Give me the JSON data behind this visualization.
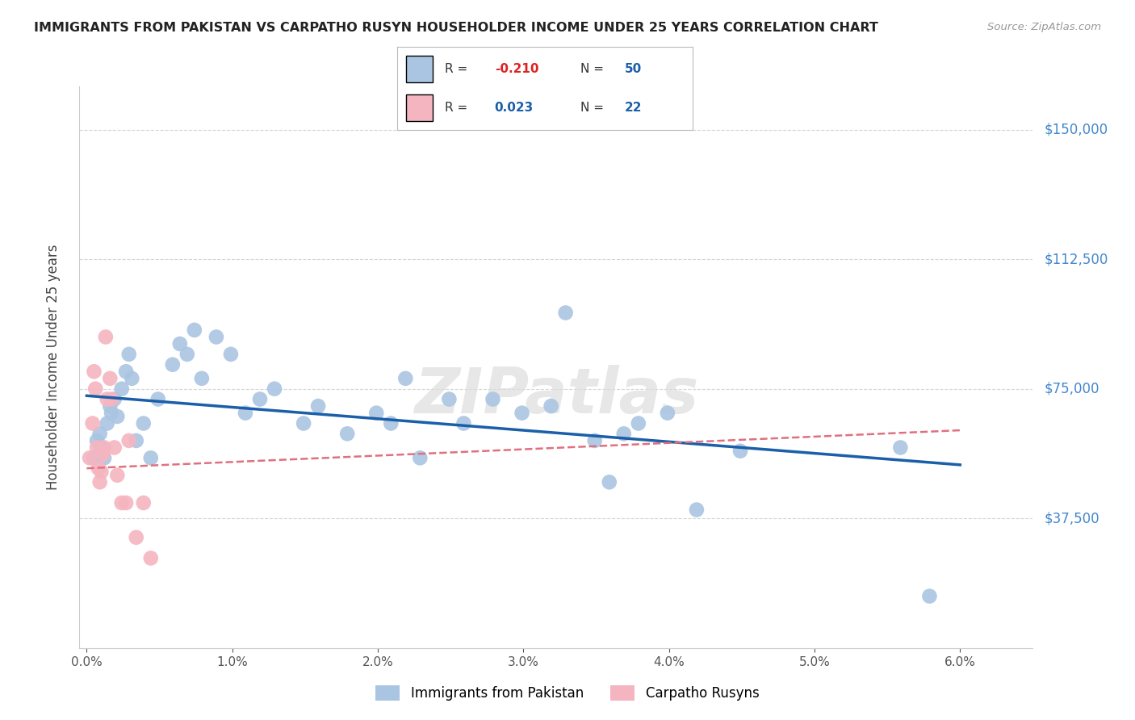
{
  "title": "IMMIGRANTS FROM PAKISTAN VS CARPATHO RUSYN HOUSEHOLDER INCOME UNDER 25 YEARS CORRELATION CHART",
  "source": "Source: ZipAtlas.com",
  "ylabel": "Householder Income Under 25 years",
  "ytick_labels": [
    "$37,500",
    "$75,000",
    "$112,500",
    "$150,000"
  ],
  "ytick_vals": [
    37500,
    75000,
    112500,
    150000
  ],
  "ylim": [
    0,
    162500
  ],
  "xlim": [
    -0.05,
    6.5
  ],
  "watermark": "ZIPatlas",
  "legend_blue_r": "-0.210",
  "legend_blue_n": "50",
  "legend_pink_r": "0.023",
  "legend_pink_n": "22",
  "blue_scatter": [
    [
      0.05,
      55000
    ],
    [
      0.07,
      60000
    ],
    [
      0.09,
      62000
    ],
    [
      0.1,
      58000
    ],
    [
      0.12,
      55000
    ],
    [
      0.14,
      65000
    ],
    [
      0.16,
      70000
    ],
    [
      0.17,
      68000
    ],
    [
      0.19,
      72000
    ],
    [
      0.21,
      67000
    ],
    [
      0.24,
      75000
    ],
    [
      0.27,
      80000
    ],
    [
      0.29,
      85000
    ],
    [
      0.31,
      78000
    ],
    [
      0.34,
      60000
    ],
    [
      0.39,
      65000
    ],
    [
      0.44,
      55000
    ],
    [
      0.49,
      72000
    ],
    [
      0.59,
      82000
    ],
    [
      0.64,
      88000
    ],
    [
      0.69,
      85000
    ],
    [
      0.74,
      92000
    ],
    [
      0.79,
      78000
    ],
    [
      0.89,
      90000
    ],
    [
      0.99,
      85000
    ],
    [
      1.09,
      68000
    ],
    [
      1.19,
      72000
    ],
    [
      1.29,
      75000
    ],
    [
      1.49,
      65000
    ],
    [
      1.59,
      70000
    ],
    [
      1.79,
      62000
    ],
    [
      1.99,
      68000
    ],
    [
      2.09,
      65000
    ],
    [
      2.19,
      78000
    ],
    [
      2.29,
      55000
    ],
    [
      2.49,
      72000
    ],
    [
      2.59,
      65000
    ],
    [
      2.79,
      72000
    ],
    [
      2.99,
      68000
    ],
    [
      3.19,
      70000
    ],
    [
      3.29,
      97000
    ],
    [
      3.49,
      60000
    ],
    [
      3.59,
      48000
    ],
    [
      3.69,
      62000
    ],
    [
      3.79,
      65000
    ],
    [
      3.99,
      68000
    ],
    [
      4.19,
      40000
    ],
    [
      4.49,
      57000
    ],
    [
      5.59,
      58000
    ],
    [
      5.79,
      15000
    ]
  ],
  "pink_scatter": [
    [
      0.02,
      55000
    ],
    [
      0.04,
      65000
    ],
    [
      0.05,
      80000
    ],
    [
      0.06,
      75000
    ],
    [
      0.07,
      58000
    ],
    [
      0.08,
      52000
    ],
    [
      0.09,
      48000
    ],
    [
      0.1,
      51000
    ],
    [
      0.11,
      56000
    ],
    [
      0.12,
      58000
    ],
    [
      0.13,
      90000
    ],
    [
      0.14,
      72000
    ],
    [
      0.16,
      78000
    ],
    [
      0.17,
      72000
    ],
    [
      0.19,
      58000
    ],
    [
      0.21,
      50000
    ],
    [
      0.24,
      42000
    ],
    [
      0.27,
      42000
    ],
    [
      0.29,
      60000
    ],
    [
      0.34,
      32000
    ],
    [
      0.39,
      42000
    ],
    [
      0.44,
      26000
    ]
  ],
  "blue_line_x": [
    0.0,
    6.0
  ],
  "blue_line_y": [
    73000,
    53000
  ],
  "pink_line_x": [
    0.0,
    6.0
  ],
  "pink_line_y": [
    52000,
    63000
  ],
  "blue_color": "#aac5e2",
  "blue_line_color": "#1a5fa8",
  "pink_color": "#f5b5c0",
  "pink_line_color": "#e07080",
  "bg_color": "#ffffff",
  "grid_color": "#d5d5d5",
  "right_label_color": "#4488cc",
  "title_color": "#222222",
  "marker_size": 180
}
